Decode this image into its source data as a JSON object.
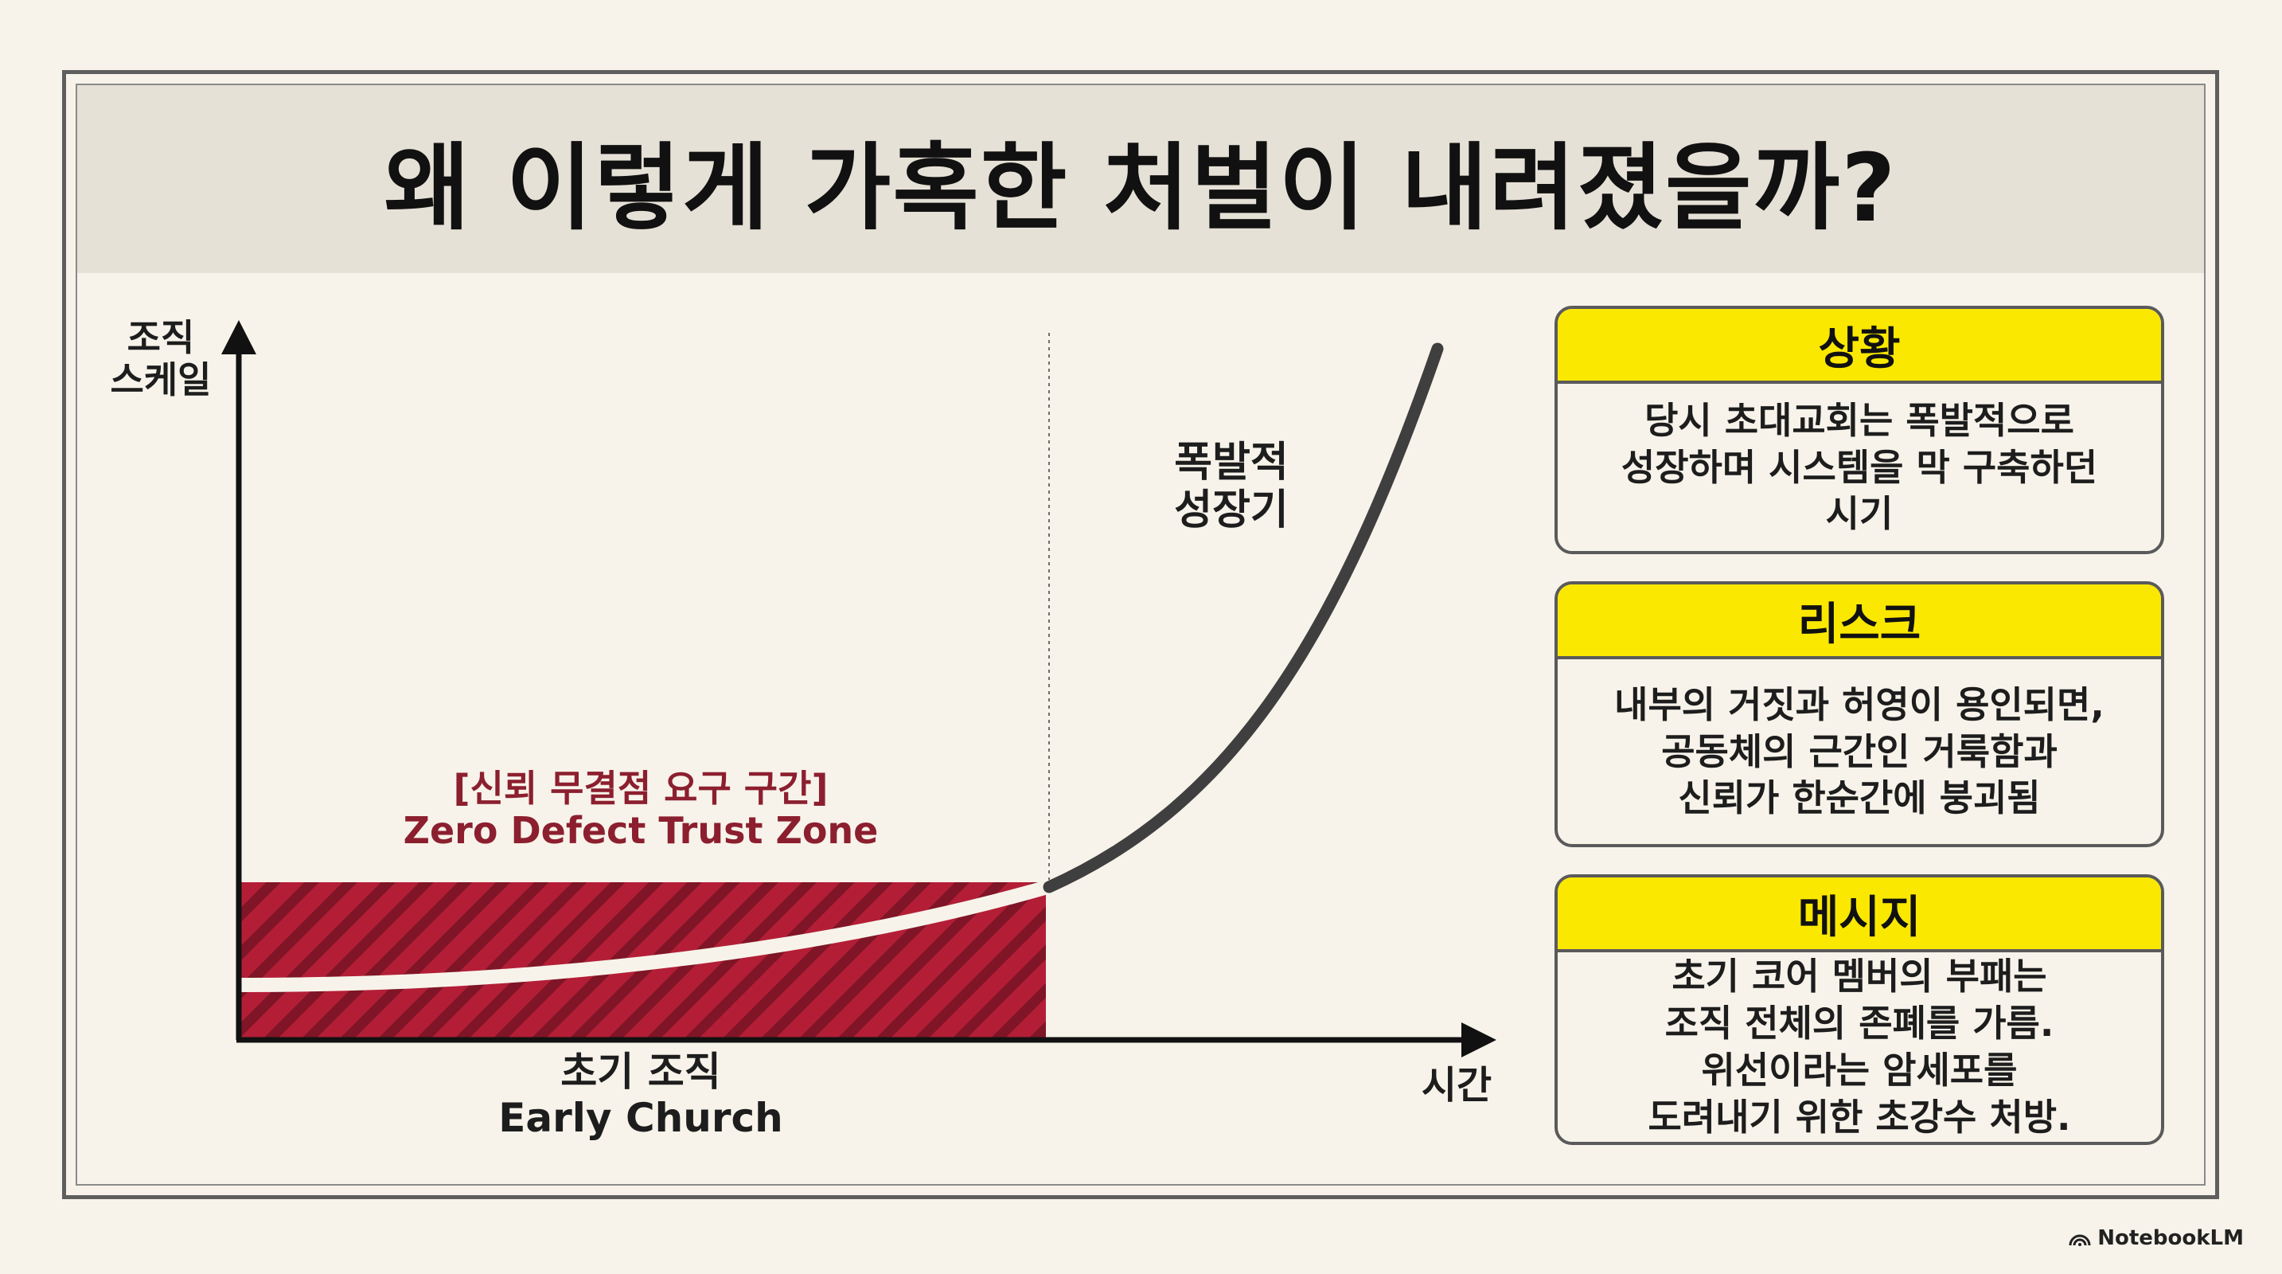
{
  "title": "왜 이렇게 가혹한 처벌이 내려졌을까?",
  "chart": {
    "y_axis_label": [
      "조직",
      "스케일"
    ],
    "x_axis_label": "시간",
    "curve_label": [
      "폭발적",
      "성장기"
    ],
    "zone_label_ko": "[신뢰 무결점 요구 구간]",
    "zone_label_en": "Zero Defect Trust Zone",
    "early_label_ko": "초기 조직",
    "early_label_en": "Early Church"
  },
  "cards": {
    "situation": {
      "heading": "상황",
      "lines": [
        "당시 초대교회는 폭발적으로",
        "성장하며 시스템을 막 구축하던",
        "시기"
      ]
    },
    "risk": {
      "heading": "리스크",
      "lines": [
        "내부의 거짓과 허영이 용인되면,",
        "공동체의 근간인 거룩함과",
        "신뢰가 한순간에 붕괴됨"
      ]
    },
    "message": {
      "heading": "메시지",
      "lines": [
        "초기 코어 멤버의 부패는",
        "조직 전체의 존폐를 가름.",
        "위선이라는 암세포를",
        "도려내기 위한 초강수 처방."
      ]
    }
  },
  "colors": {
    "background": "#f7f3ea",
    "title_band": "#e6e1d6",
    "card_header": "#fbe800",
    "zone_fill": "#b31e36",
    "zone_label": "#8c1f2f"
  },
  "logo": "NotebookLM"
}
